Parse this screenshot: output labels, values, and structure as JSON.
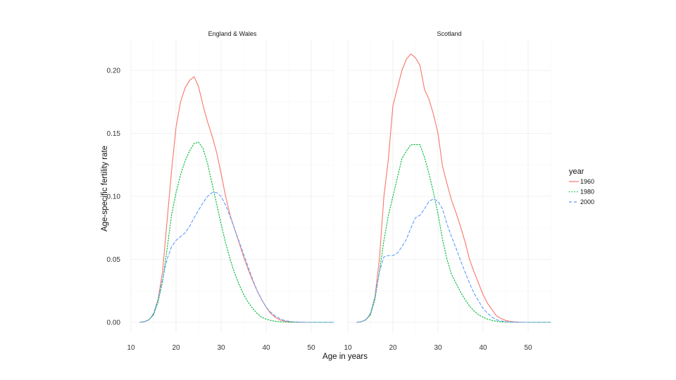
{
  "chart_data": {
    "type": "line",
    "xlabel": "Age in years",
    "ylabel": "Age-specific fertility rate",
    "xlim": [
      10,
      55
    ],
    "ylim": [
      0,
      0.2
    ],
    "x_ticks": [
      10,
      20,
      30,
      40,
      50
    ],
    "y_ticks": [
      0.0,
      0.05,
      0.1,
      0.15,
      0.2
    ],
    "y_tick_labels": [
      "0.00",
      "0.05",
      "0.10",
      "0.15",
      "0.20"
    ],
    "grid": true,
    "legend": {
      "title": "year",
      "placement": "right",
      "entries": [
        {
          "label": "1960",
          "color": "#F8766D",
          "dash": "solid"
        },
        {
          "label": "1980",
          "color": "#00BA38",
          "dash": "dotted"
        },
        {
          "label": "2000",
          "color": "#619CFF",
          "dash": "dashed"
        }
      ]
    },
    "panels": [
      {
        "title": "England & Wales",
        "series": [
          {
            "name": "1960",
            "x": [
              12,
              13,
              14,
              15,
              16,
              17,
              18,
              19,
              20,
              21,
              22,
              23,
              24,
              25,
              26,
              27,
              28,
              29,
              30,
              31,
              32,
              33,
              34,
              35,
              36,
              37,
              38,
              39,
              40,
              41,
              42,
              43,
              44,
              45,
              46,
              47,
              48,
              49,
              50,
              51,
              52,
              53,
              54,
              55
            ],
            "y": [
              0.0,
              0.0005,
              0.002,
              0.006,
              0.018,
              0.04,
              0.08,
              0.12,
              0.155,
              0.175,
              0.186,
              0.192,
              0.195,
              0.187,
              0.172,
              0.159,
              0.148,
              0.135,
              0.118,
              0.1,
              0.085,
              0.074,
              0.063,
              0.052,
              0.042,
              0.033,
              0.025,
              0.018,
              0.012,
              0.007,
              0.004,
              0.002,
              0.001,
              0.0005,
              0.0002,
              0.0001,
              0.0,
              0.0,
              0.0,
              0.0,
              0.0,
              0.0,
              0.0,
              0.0
            ]
          },
          {
            "name": "1980",
            "x": [
              12,
              13,
              14,
              15,
              16,
              17,
              18,
              19,
              20,
              21,
              22,
              23,
              24,
              25,
              26,
              27,
              28,
              29,
              30,
              31,
              32,
              33,
              34,
              35,
              36,
              37,
              38,
              39,
              40,
              41,
              42,
              43,
              44,
              45,
              46,
              47,
              48,
              49,
              50,
              51,
              52,
              53,
              54,
              55
            ],
            "y": [
              0.0,
              0.0005,
              0.002,
              0.006,
              0.016,
              0.032,
              0.058,
              0.085,
              0.103,
              0.117,
              0.128,
              0.136,
              0.142,
              0.143,
              0.138,
              0.126,
              0.11,
              0.094,
              0.078,
              0.063,
              0.05,
              0.039,
              0.03,
              0.022,
              0.016,
              0.011,
              0.007,
              0.004,
              0.0025,
              0.0015,
              0.0008,
              0.0004,
              0.0002,
              0.0001,
              0.0,
              0.0,
              0.0,
              0.0,
              0.0,
              0.0,
              0.0,
              0.0,
              0.0,
              0.0
            ]
          },
          {
            "name": "2000",
            "x": [
              12,
              13,
              14,
              15,
              16,
              17,
              18,
              19,
              20,
              21,
              22,
              23,
              24,
              25,
              26,
              27,
              28,
              29,
              30,
              31,
              32,
              33,
              34,
              35,
              36,
              37,
              38,
              39,
              40,
              41,
              42,
              43,
              44,
              45,
              46,
              47,
              48,
              49,
              50,
              51,
              52,
              53,
              54,
              55
            ],
            "y": [
              0.0,
              0.0005,
              0.002,
              0.007,
              0.018,
              0.034,
              0.05,
              0.06,
              0.065,
              0.068,
              0.071,
              0.076,
              0.083,
              0.089,
              0.095,
              0.1,
              0.103,
              0.103,
              0.1,
              0.093,
              0.084,
              0.074,
              0.064,
              0.054,
              0.044,
              0.034,
              0.025,
              0.018,
              0.012,
              0.008,
              0.005,
              0.003,
              0.0015,
              0.0008,
              0.0004,
              0.0002,
              0.0001,
              0.0,
              0.0,
              0.0,
              0.0,
              0.0,
              0.0,
              0.0
            ]
          }
        ]
      },
      {
        "title": "Scotland",
        "series": [
          {
            "name": "1960",
            "x": [
              12,
              13,
              14,
              15,
              16,
              17,
              18,
              19,
              20,
              21,
              22,
              23,
              24,
              25,
              26,
              27,
              28,
              29,
              30,
              31,
              32,
              33,
              34,
              35,
              36,
              37,
              38,
              39,
              40,
              41,
              42,
              43,
              44,
              45,
              46,
              47,
              48,
              49,
              50,
              51,
              52,
              53,
              54,
              55
            ],
            "y": [
              0.0,
              0.0005,
              0.002,
              0.006,
              0.02,
              0.05,
              0.1,
              0.13,
              0.172,
              0.186,
              0.2,
              0.209,
              0.213,
              0.21,
              0.204,
              0.185,
              0.177,
              0.165,
              0.15,
              0.124,
              0.11,
              0.097,
              0.087,
              0.076,
              0.064,
              0.05,
              0.04,
              0.031,
              0.022,
              0.015,
              0.01,
              0.005,
              0.003,
              0.0015,
              0.0007,
              0.0003,
              0.0001,
              0.0,
              0.0,
              0.0,
              0.0,
              0.0,
              0.0,
              0.0
            ]
          },
          {
            "name": "1980",
            "x": [
              12,
              13,
              14,
              15,
              16,
              17,
              18,
              19,
              20,
              21,
              22,
              23,
              24,
              25,
              26,
              27,
              28,
              29,
              30,
              31,
              32,
              33,
              34,
              35,
              36,
              37,
              38,
              39,
              40,
              41,
              42,
              43,
              44,
              45,
              46,
              47,
              48,
              49,
              50,
              51,
              52,
              53,
              54,
              55
            ],
            "y": [
              0.0,
              0.0005,
              0.002,
              0.006,
              0.018,
              0.04,
              0.065,
              0.085,
              0.1,
              0.115,
              0.13,
              0.136,
              0.141,
              0.141,
              0.141,
              0.131,
              0.118,
              0.103,
              0.086,
              0.066,
              0.05,
              0.038,
              0.031,
              0.024,
              0.018,
              0.013,
              0.009,
              0.006,
              0.004,
              0.0025,
              0.0015,
              0.0008,
              0.0004,
              0.0002,
              0.0001,
              0.0,
              0.0,
              0.0,
              0.0,
              0.0,
              0.0,
              0.0,
              0.0,
              0.0
            ]
          },
          {
            "name": "2000",
            "x": [
              12,
              13,
              14,
              15,
              16,
              17,
              18,
              19,
              20,
              21,
              22,
              23,
              24,
              25,
              26,
              27,
              28,
              29,
              30,
              31,
              32,
              33,
              34,
              35,
              36,
              37,
              38,
              39,
              40,
              41,
              42,
              43,
              44,
              45,
              46,
              47,
              48,
              49,
              50,
              51,
              52,
              53,
              54,
              55
            ],
            "y": [
              0.0,
              0.0005,
              0.002,
              0.007,
              0.02,
              0.04,
              0.052,
              0.053,
              0.053,
              0.055,
              0.06,
              0.066,
              0.075,
              0.083,
              0.085,
              0.09,
              0.096,
              0.098,
              0.096,
              0.09,
              0.078,
              0.068,
              0.059,
              0.049,
              0.04,
              0.031,
              0.023,
              0.017,
              0.011,
              0.007,
              0.004,
              0.002,
              0.001,
              0.0005,
              0.0002,
              0.0001,
              0.0,
              0.0,
              0.0,
              0.0,
              0.0,
              0.0,
              0.0,
              0.0
            ]
          }
        ]
      }
    ]
  }
}
